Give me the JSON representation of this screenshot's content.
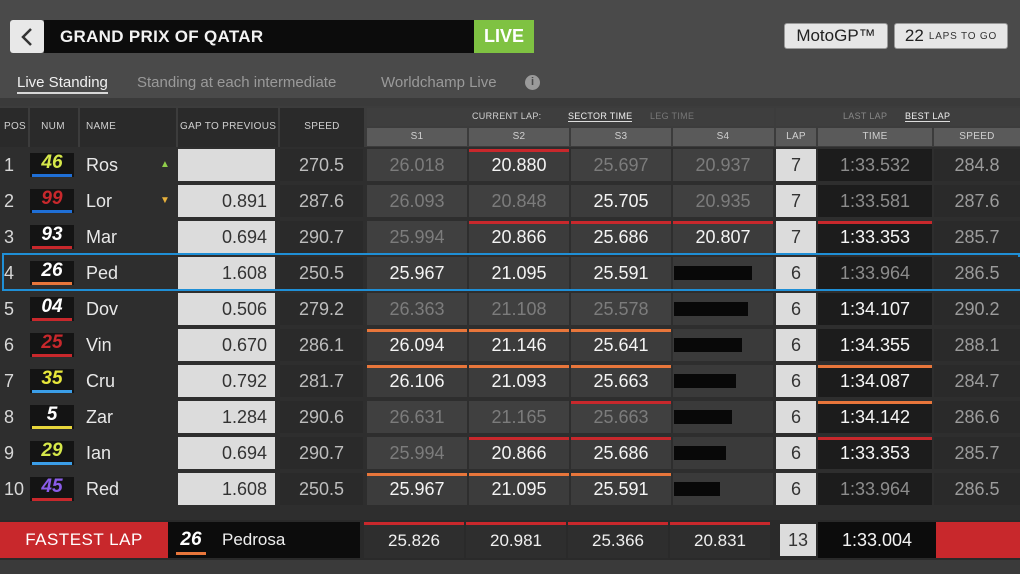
{
  "header": {
    "back_icon": "chevron-left-icon",
    "title": "GRAND PRIX OF QATAR",
    "live": "LIVE",
    "class": "MotoGP™",
    "laps_to_go_value": "22",
    "laps_to_go_label": "LAPS TO GO"
  },
  "tabs": [
    {
      "label": "Live Standing",
      "active": true
    },
    {
      "label": "Standing at each intermediate",
      "active": false
    },
    {
      "label": "Worldchamp Live",
      "active": false
    }
  ],
  "info_icon": "info-icon",
  "columns": {
    "pos": "POS",
    "num": "NUM",
    "name": "NAME",
    "gap": "GAP TO PREVIOUS",
    "speed": "SPEED",
    "current_lap": "CURRENT LAP:",
    "sector_time": "SECTOR TIME",
    "leg_time": "LEG TIME",
    "s1": "S1",
    "s2": "S2",
    "s3": "S3",
    "s4": "S4",
    "last_lap": "LAST LAP",
    "best_lap": "BEST LAP",
    "lap": "LAP",
    "time": "TIME",
    "best_speed": "SPEED"
  },
  "colors": {
    "live_green": "#7fc242",
    "highlight_blue": "#1f8fd6",
    "red": "#c8282c",
    "orange": "#e8763b",
    "yellow_green": "#b6d64a"
  },
  "rows": [
    {
      "pos": "1",
      "num": "46",
      "num_color": "#d6e84a",
      "num_bg": "#141414",
      "bar_color": "#1f6fd6",
      "name": "Ros",
      "arrow": "▲",
      "arrow_color": "#8fce4a",
      "gap": "",
      "speed": "270.5",
      "sectors": [
        {
          "v": "26.018",
          "s": "old",
          "line": ""
        },
        {
          "v": "20.880",
          "s": "done",
          "line": "#c8282c"
        },
        {
          "v": "25.697",
          "s": "old",
          "line": ""
        },
        {
          "v": "20.937",
          "s": "old",
          "line": ""
        }
      ],
      "progress": 0,
      "lap": "7",
      "time": "1:33.532",
      "time_hl": false,
      "time_line": "",
      "best_speed": "284.8"
    },
    {
      "pos": "2",
      "num": "99",
      "num_color": "#c8282c",
      "num_bg": "#141414",
      "bar_color": "#1f6fd6",
      "name": "Lor",
      "arrow": "▼",
      "arrow_color": "#e8b13b",
      "gap": "0.891",
      "speed": "287.6",
      "sectors": [
        {
          "v": "26.093",
          "s": "old",
          "line": ""
        },
        {
          "v": "20.848",
          "s": "old",
          "line": ""
        },
        {
          "v": "25.705",
          "s": "done",
          "line": ""
        },
        {
          "v": "20.935",
          "s": "old",
          "line": ""
        }
      ],
      "progress": 0,
      "lap": "7",
      "time": "1:33.581",
      "time_hl": false,
      "time_line": "",
      "best_speed": "287.6"
    },
    {
      "pos": "3",
      "num": "93",
      "num_color": "#ffffff",
      "num_bg": "#141414",
      "bar_color": "#c8282c",
      "name": "Mar",
      "arrow": "",
      "arrow_color": "",
      "gap": "0.694",
      "speed": "290.7",
      "sectors": [
        {
          "v": "25.994",
          "s": "old",
          "line": ""
        },
        {
          "v": "20.866",
          "s": "done",
          "line": "#c8282c"
        },
        {
          "v": "25.686",
          "s": "done",
          "line": "#c8282c"
        },
        {
          "v": "20.807",
          "s": "done",
          "line": "#c8282c"
        }
      ],
      "progress": 0,
      "lap": "7",
      "time": "1:33.353",
      "time_hl": true,
      "time_line": "#c8282c",
      "best_speed": "285.7"
    },
    {
      "pos": "4",
      "num": "26",
      "num_color": "#ffffff",
      "num_bg": "#141414",
      "bar_color": "#e8763b",
      "name": "Ped",
      "arrow": "",
      "arrow_color": "",
      "gap": "1.608",
      "speed": "250.5",
      "sectors": [
        {
          "v": "25.967",
          "s": "done",
          "line": ""
        },
        {
          "v": "21.095",
          "s": "done",
          "line": ""
        },
        {
          "v": "25.591",
          "s": "done",
          "line": ""
        },
        {
          "v": "",
          "s": "empty",
          "line": ""
        }
      ],
      "progress": 0.78,
      "lap": "6",
      "time": "1:33.964",
      "time_hl": false,
      "time_line": "",
      "best_speed": "286.5"
    },
    {
      "pos": "5",
      "num": "04",
      "num_color": "#ffffff",
      "num_bg": "#141414",
      "bar_color": "#c8282c",
      "name": "Dov",
      "arrow": "",
      "arrow_color": "",
      "gap": "0.506",
      "speed": "279.2",
      "sectors": [
        {
          "v": "26.363",
          "s": "old",
          "line": ""
        },
        {
          "v": "21.108",
          "s": "old",
          "line": ""
        },
        {
          "v": "25.578",
          "s": "old",
          "line": ""
        },
        {
          "v": "",
          "s": "empty",
          "line": ""
        }
      ],
      "progress": 0.74,
      "lap": "6",
      "time": "1:34.107",
      "time_hl": true,
      "time_line": "",
      "best_speed": "290.2"
    },
    {
      "pos": "6",
      "num": "25",
      "num_color": "#c8282c",
      "num_bg": "#141414",
      "bar_color": "#c8282c",
      "name": "Vin",
      "arrow": "",
      "arrow_color": "",
      "gap": "0.670",
      "speed": "286.1",
      "sectors": [
        {
          "v": "26.094",
          "s": "done",
          "line": "#e8763b"
        },
        {
          "v": "21.146",
          "s": "done",
          "line": "#e8763b"
        },
        {
          "v": "25.641",
          "s": "done",
          "line": "#e8763b"
        },
        {
          "v": "",
          "s": "empty",
          "line": ""
        }
      ],
      "progress": 0.68,
      "lap": "6",
      "time": "1:34.355",
      "time_hl": true,
      "time_line": "",
      "best_speed": "288.1"
    },
    {
      "pos": "7",
      "num": "35",
      "num_color": "#e8e83b",
      "num_bg": "#141414",
      "bar_color": "#3b9ee8",
      "name": "Cru",
      "arrow": "",
      "arrow_color": "",
      "gap": "0.792",
      "speed": "281.7",
      "sectors": [
        {
          "v": "26.106",
          "s": "done",
          "line": "#e8763b"
        },
        {
          "v": "21.093",
          "s": "done",
          "line": "#e8763b"
        },
        {
          "v": "25.663",
          "s": "done",
          "line": "#e8763b"
        },
        {
          "v": "",
          "s": "empty",
          "line": ""
        }
      ],
      "progress": 0.62,
      "lap": "6",
      "time": "1:34.087",
      "time_hl": true,
      "time_line": "#e8763b",
      "best_speed": "284.7"
    },
    {
      "pos": "8",
      "num": "5",
      "num_color": "#ffffff",
      "num_bg": "#141414",
      "bar_color": "#e8d63b",
      "name": "Zar",
      "arrow": "",
      "arrow_color": "",
      "gap": "1.284",
      "speed": "290.6",
      "sectors": [
        {
          "v": "26.631",
          "s": "old",
          "line": ""
        },
        {
          "v": "21.165",
          "s": "old",
          "line": ""
        },
        {
          "v": "25.663",
          "s": "old",
          "line": "#c8282c"
        },
        {
          "v": "",
          "s": "empty",
          "line": ""
        }
      ],
      "progress": 0.58,
      "lap": "6",
      "time": "1:34.142",
      "time_hl": true,
      "time_line": "#e8763b",
      "best_speed": "286.6"
    },
    {
      "pos": "9",
      "num": "29",
      "num_color": "#d6e84a",
      "num_bg": "#141414",
      "bar_color": "#3b9ee8",
      "name": "Ian",
      "arrow": "",
      "arrow_color": "",
      "gap": "0.694",
      "speed": "290.7",
      "sectors": [
        {
          "v": "25.994",
          "s": "old",
          "line": ""
        },
        {
          "v": "20.866",
          "s": "done",
          "line": "#c8282c"
        },
        {
          "v": "25.686",
          "s": "done",
          "line": "#c8282c"
        },
        {
          "v": "",
          "s": "empty",
          "line": ""
        }
      ],
      "progress": 0.52,
      "lap": "6",
      "time": "1:33.353",
      "time_hl": true,
      "time_line": "#c8282c",
      "best_speed": "285.7"
    },
    {
      "pos": "10",
      "num": "45",
      "num_color": "#8a5ce8",
      "num_bg": "#141414",
      "bar_color": "#c8282c",
      "name": "Red",
      "arrow": "",
      "arrow_color": "",
      "gap": "1.608",
      "speed": "250.5",
      "sectors": [
        {
          "v": "25.967",
          "s": "done",
          "line": "#e8763b"
        },
        {
          "v": "21.095",
          "s": "done",
          "line": "#e8763b"
        },
        {
          "v": "25.591",
          "s": "done",
          "line": "#e8763b"
        },
        {
          "v": "",
          "s": "empty",
          "line": ""
        }
      ],
      "progress": 0.46,
      "lap": "6",
      "time": "1:33.964",
      "time_hl": false,
      "time_line": "",
      "best_speed": "286.5"
    }
  ],
  "fastest_lap": {
    "label": "FASTEST LAP",
    "num": "26",
    "name": "Pedrosa",
    "s1": "25.826",
    "s2": "20.981",
    "s3": "25.366",
    "s4": "20.831",
    "lap": "13",
    "time": "1:33.004"
  }
}
